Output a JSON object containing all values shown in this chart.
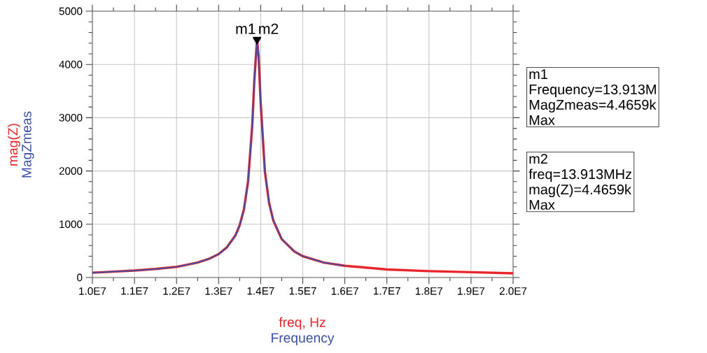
{
  "chart_data": {
    "type": "line",
    "xlabel": "freq, Hz",
    "annotations": [
      "Frequency",
      {
        "text": "m1",
        "x": 13913000,
        "y": 4465.9
      },
      {
        "text": "m2",
        "x": 13913000,
        "y": 4465.9
      },
      "m1",
      "Frequency=13.913M",
      "MagZmeas=4.4659k",
      "Max",
      "m2",
      "freq=13.913MHz",
      "mag(Z)=4.4659k",
      "Max"
    ],
    "series": [
      {
        "name": "mag(Z)",
        "color": "#e8262b",
        "x": [
          10000000,
          10500000,
          11000000,
          11500000,
          12000000,
          12500000,
          12800000,
          13000000,
          13200000,
          13400000,
          13500000,
          13600000,
          13700000,
          13800000,
          13850000,
          13913000,
          13950000,
          14000000,
          14100000,
          14200000,
          14300000,
          14500000,
          14800000,
          15000000,
          15500000,
          16000000,
          17000000,
          18000000,
          19000000,
          20000000
        ],
        "values": [
          90,
          110,
          130,
          160,
          200,
          280,
          360,
          440,
          570,
          790,
          980,
          1270,
          1800,
          2860,
          3710,
          4465.9,
          4160,
          3280,
          1990,
          1400,
          1070,
          720,
          490,
          400,
          280,
          220,
          150,
          120,
          100,
          80
        ]
      },
      {
        "name": "MagZmeas",
        "color": "#3d4fa8",
        "x": [
          10000000,
          10500000,
          11000000,
          11500000,
          12000000,
          12500000,
          12800000,
          13000000,
          13200000,
          13400000,
          13500000,
          13600000,
          13700000,
          13800000,
          13850000,
          13913000,
          13950000,
          14000000,
          14100000,
          14200000,
          14300000,
          14500000,
          14800000,
          15000000,
          15500000,
          16000000
        ],
        "values": [
          90,
          110,
          130,
          160,
          200,
          280,
          360,
          440,
          570,
          790,
          980,
          1270,
          1800,
          2860,
          3710,
          4465.9,
          4160,
          3280,
          1990,
          1400,
          1070,
          720,
          490,
          400,
          280,
          220
        ]
      },
      {
        "type": "scatter",
        "marker": "triangle",
        "color": "#000000",
        "x": [
          13913000
        ],
        "values": [
          4465.9
        ]
      }
    ],
    "xlim": [
      10000000,
      20000000
    ],
    "xticks": [
      {
        "value": 10000000,
        "label": "1.0E7"
      },
      {
        "value": 11000000,
        "label": "1.1E7"
      },
      {
        "value": 12000000,
        "label": "1.2E7"
      },
      {
        "value": 13000000,
        "label": "1.3E7"
      },
      {
        "value": 14000000,
        "label": "1.4E7"
      },
      {
        "value": 15000000,
        "label": "1.5E7"
      },
      {
        "value": 16000000,
        "label": "1.6E7"
      },
      {
        "value": 17000000,
        "label": "1.7E7"
      },
      {
        "value": 18000000,
        "label": "1.8E7"
      },
      {
        "value": 19000000,
        "label": "1.9E7"
      },
      {
        "value": 20000000,
        "label": "2.0E7"
      }
    ],
    "ylim": [
      0,
      5000
    ],
    "yticks": [
      0,
      1000,
      2000,
      3000,
      4000,
      5000
    ],
    "grid": true
  }
}
